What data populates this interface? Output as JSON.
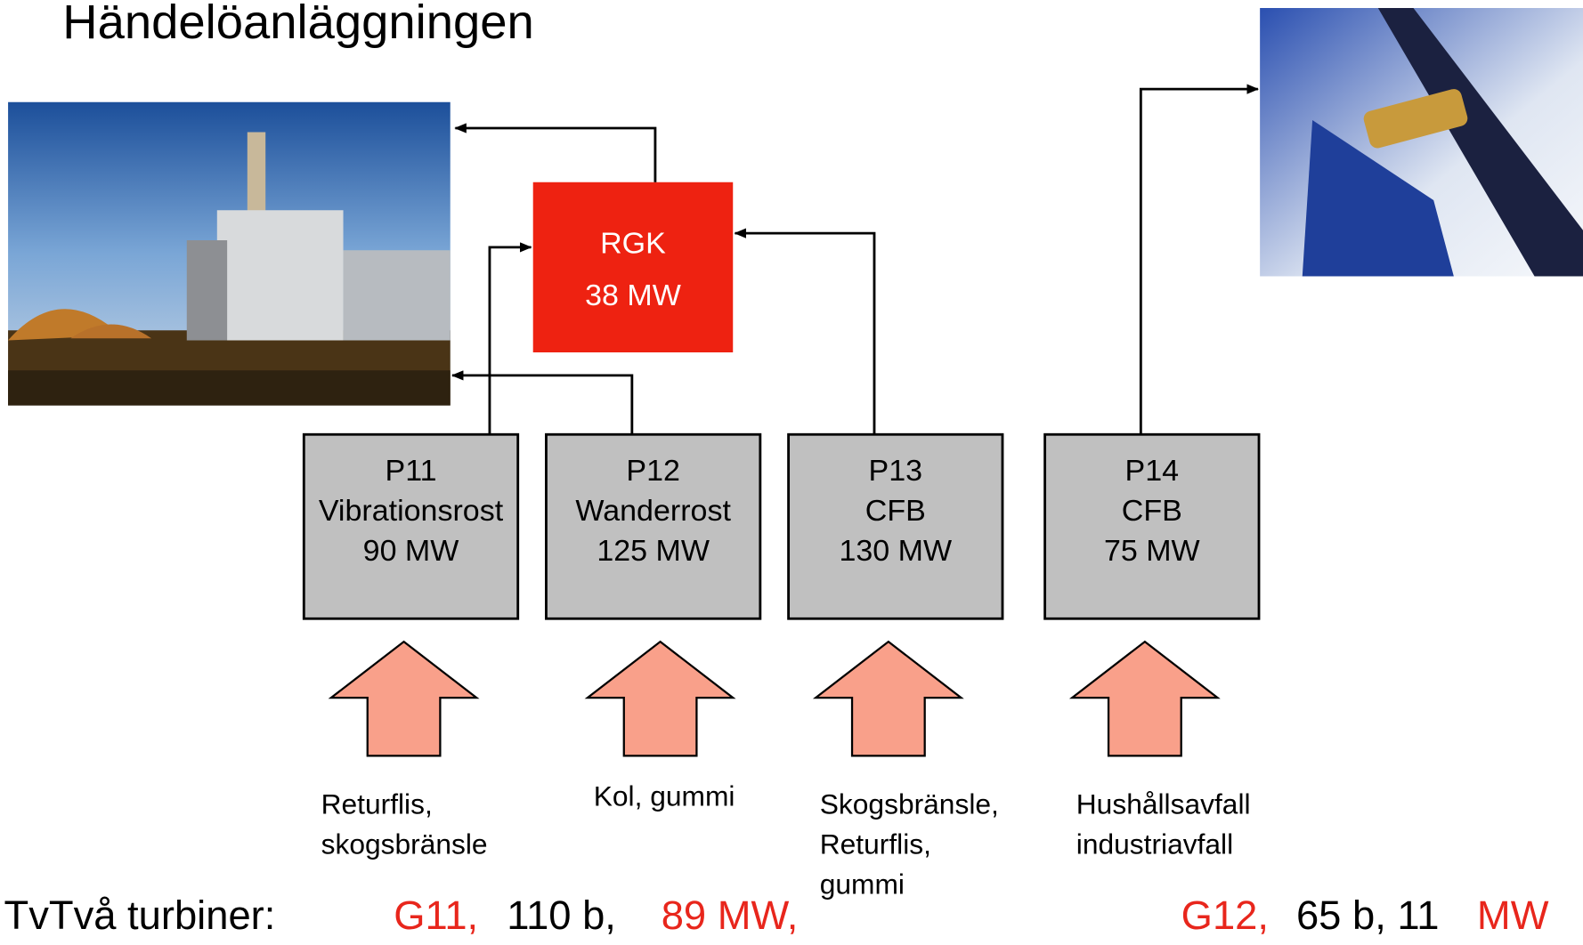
{
  "title": "Händelöanläggningen",
  "rgk": {
    "name": "RGK",
    "power": "38 MW"
  },
  "boilers": [
    {
      "id": "P11",
      "type": "Vibrationsrost",
      "power": "90 MW",
      "fuel": [
        "Returflis,",
        "skogsbränsle"
      ]
    },
    {
      "id": "P12",
      "type": "Wanderrost",
      "power": "125 MW",
      "fuel": [
        "Kol, gummi"
      ]
    },
    {
      "id": "P13",
      "type": "CFB",
      "power": "130 MW",
      "fuel": [
        "Skogsbränsle,",
        "Returflis,",
        "gummi"
      ]
    },
    {
      "id": "P14",
      "type": "CFB",
      "power": "75 MW",
      "fuel": [
        "Hushållsavfall",
        "industriavfall"
      ]
    }
  ],
  "turbines": {
    "label": "TvTvå turbiner:",
    "parts": [
      {
        "text": "G11,",
        "color": "#e8261c"
      },
      {
        "text": "110 b,",
        "color": "#000000"
      },
      {
        "text": "89 MW,",
        "color": "#e8261c"
      },
      {
        "text": "G12,",
        "color": "#e8261c"
      },
      {
        "text": "65 b, 11",
        "color": "#000000"
      },
      {
        "text": "MW",
        "color": "#e8261c"
      }
    ]
  }
}
